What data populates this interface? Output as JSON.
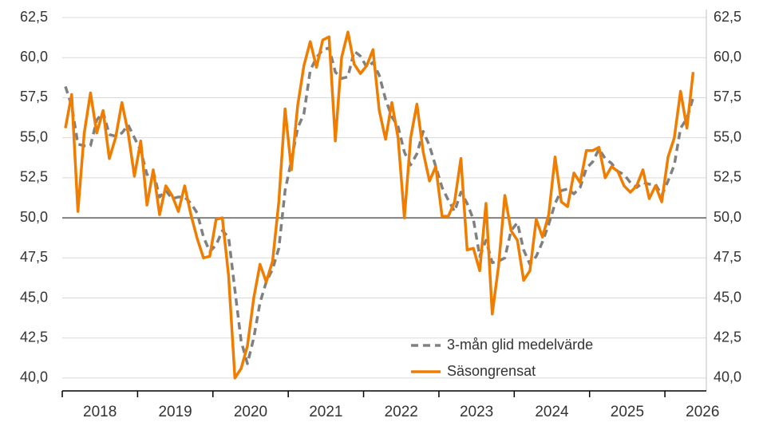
{
  "chart_data": {
    "type": "line",
    "x": [
      2018.042,
      2018.125,
      2018.208,
      2018.292,
      2018.375,
      2018.458,
      2018.542,
      2018.625,
      2018.708,
      2018.792,
      2018.875,
      2018.958,
      2019.042,
      2019.125,
      2019.208,
      2019.292,
      2019.375,
      2019.458,
      2019.542,
      2019.625,
      2019.708,
      2019.792,
      2019.875,
      2019.958,
      2020.042,
      2020.125,
      2020.208,
      2020.292,
      2020.375,
      2020.458,
      2020.542,
      2020.625,
      2020.708,
      2020.792,
      2020.875,
      2020.958,
      2021.042,
      2021.125,
      2021.208,
      2021.292,
      2021.375,
      2021.458,
      2021.542,
      2021.625,
      2021.708,
      2021.792,
      2021.875,
      2021.958,
      2022.042,
      2022.125,
      2022.208,
      2022.292,
      2022.375,
      2022.458,
      2022.542,
      2022.625,
      2022.708,
      2022.792,
      2022.875,
      2022.958,
      2023.042,
      2023.125,
      2023.208,
      2023.292,
      2023.375,
      2023.458,
      2023.542,
      2023.625,
      2023.708,
      2023.792,
      2023.875,
      2023.958,
      2024.042,
      2024.125,
      2024.208,
      2024.292,
      2024.375,
      2024.458,
      2024.542,
      2024.625,
      2024.708,
      2024.792,
      2024.875,
      2024.958,
      2025.042,
      2025.125,
      2025.208,
      2025.292,
      2025.375,
      2025.458,
      2025.542,
      2025.625,
      2025.708,
      2025.792,
      2025.875,
      2025.958,
      2026.042,
      2026.125,
      2026.208,
      2026.292,
      2026.375
    ],
    "series": [
      {
        "name": "3-mån glid medelvärde",
        "color": "#808080",
        "dash": true,
        "values": [
          58.2,
          57.0,
          54.6,
          54.5,
          54.5,
          56.1,
          56.6,
          55.2,
          55.1,
          55.3,
          55.8,
          55.0,
          54.2,
          52.7,
          52.9,
          51.3,
          51.7,
          51.2,
          51.3,
          51.3,
          50.9,
          50.3,
          48.8,
          47.9,
          48.3,
          49.2,
          48.8,
          45.5,
          42.3,
          40.9,
          42.5,
          44.7,
          46.0,
          46.8,
          48.1,
          51.7,
          53.6,
          55.6,
          56.5,
          59.2,
          60.0,
          60.5,
          60.6,
          59.1,
          58.7,
          58.8,
          60.4,
          60.1,
          59.4,
          59.7,
          58.9,
          57.4,
          56.3,
          55.7,
          54.1,
          53.3,
          54.0,
          55.4,
          54.5,
          53.2,
          51.9,
          51.1,
          50.4,
          51.6,
          50.9,
          49.9,
          47.6,
          48.6,
          47.2,
          47.3,
          47.5,
          49.2,
          49.7,
          48.0,
          47.1,
          47.6,
          48.5,
          49.6,
          50.9,
          51.7,
          51.8,
          51.5,
          51.9,
          53.1,
          53.5,
          54.3,
          53.7,
          53.4,
          52.9,
          52.7,
          52.2,
          51.9,
          52.2,
          52.1,
          52.1,
          51.4,
          52.3,
          53.3,
          55.6,
          56.2,
          57.5
        ]
      },
      {
        "name": "Säsongrensat",
        "color": "#f07d00",
        "dash": false,
        "values": [
          55.6,
          57.7,
          50.4,
          55.3,
          57.8,
          55.3,
          56.7,
          53.7,
          55.0,
          57.2,
          55.3,
          52.6,
          54.8,
          50.8,
          53.0,
          50.2,
          52.0,
          51.4,
          50.4,
          52.0,
          50.2,
          48.7,
          47.5,
          47.6,
          49.9,
          50.0,
          46.4,
          40.0,
          40.6,
          42.0,
          45.0,
          47.1,
          46.0,
          47.3,
          51.0,
          56.8,
          53.0,
          57.0,
          59.5,
          61.0,
          59.4,
          61.1,
          61.3,
          54.8,
          60.0,
          61.6,
          59.6,
          59.0,
          59.5,
          60.5,
          56.7,
          54.9,
          57.2,
          55.0,
          50.0,
          55.0,
          57.1,
          54.1,
          52.3,
          53.2,
          50.1,
          50.1,
          51.0,
          53.7,
          48.0,
          48.1,
          46.7,
          50.9,
          44.0,
          47.0,
          51.4,
          49.2,
          48.6,
          46.1,
          46.7,
          49.9,
          48.8,
          50.2,
          53.8,
          51.0,
          50.7,
          52.8,
          52.2,
          54.2,
          54.2,
          54.4,
          52.5,
          53.2,
          52.9,
          52.0,
          51.6,
          52.0,
          53.0,
          51.2,
          52.0,
          51.0,
          53.8,
          55.0,
          57.9,
          55.6,
          59.1
        ]
      }
    ],
    "xlim": [
      2018,
      2026.55
    ],
    "xticks": [
      {
        "value": 2018.5,
        "label": "2018"
      },
      {
        "value": 2019.5,
        "label": "2019"
      },
      {
        "value": 2020.5,
        "label": "2020"
      },
      {
        "value": 2021.5,
        "label": "2021"
      },
      {
        "value": 2022.5,
        "label": "2022"
      },
      {
        "value": 2023.5,
        "label": "2023"
      },
      {
        "value": 2024.5,
        "label": "2024"
      },
      {
        "value": 2025.5,
        "label": "2025"
      },
      {
        "value": 2026.5,
        "label": "2026"
      }
    ],
    "xtick_marks": [
      2018,
      2019,
      2020,
      2021,
      2022,
      2023,
      2024,
      2025,
      2026
    ],
    "ylim": [
      39.2,
      63.0
    ],
    "yticks": [
      {
        "value": 40,
        "label": "40,0"
      },
      {
        "value": 42.5,
        "label": "42,5"
      },
      {
        "value": 45,
        "label": "45,0"
      },
      {
        "value": 47.5,
        "label": "47,5"
      },
      {
        "value": 50,
        "label": "50,0"
      },
      {
        "value": 52.5,
        "label": "52,5"
      },
      {
        "value": 55,
        "label": "55,0"
      },
      {
        "value": 57.5,
        "label": "57,5"
      },
      {
        "value": 60,
        "label": "60,0"
      },
      {
        "value": 62.5,
        "label": "62,5"
      }
    ],
    "reference_line": 50,
    "grid": true,
    "legend": "lower right"
  }
}
